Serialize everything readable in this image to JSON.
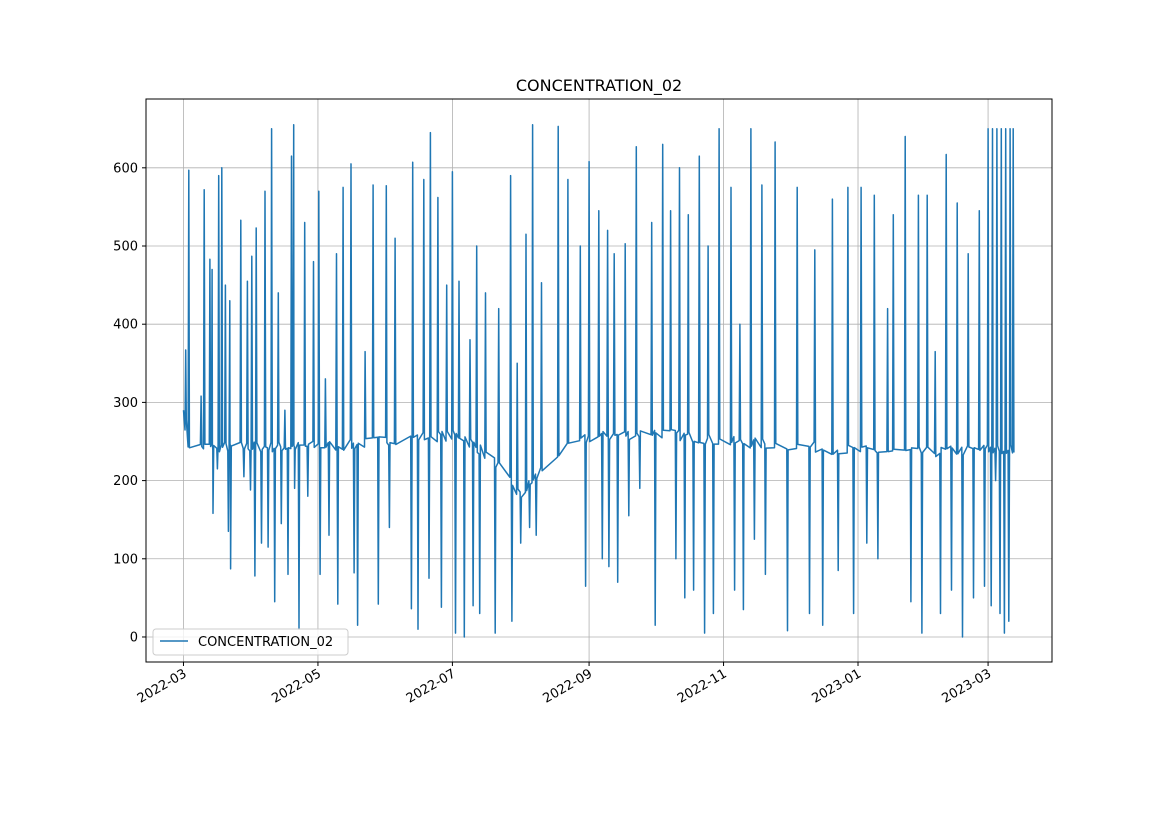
{
  "chart_data": {
    "type": "line",
    "title": "CONCENTRATION_02",
    "xlabel": "",
    "ylabel": "",
    "xlim": [
      "2022-02-12",
      "2023-03-30"
    ],
    "ylim": [
      -32,
      688
    ],
    "grid": true,
    "legend_placement": "lower-left",
    "x_ticks": [
      "2022-03",
      "2022-05",
      "2022-07",
      "2022-09",
      "2022-11",
      "2023-01",
      "2023-03"
    ],
    "y_ticks": [
      0,
      100,
      200,
      300,
      400,
      500,
      600
    ],
    "colors": {
      "series": "#1f77b4",
      "grid": "#b0b0b0"
    },
    "series": [
      {
        "name": "CONCENTRATION_02",
        "baseline": [
          [
            "2022-03-01",
            290
          ],
          [
            "2022-03-04",
            235
          ],
          [
            "2022-03-08",
            225
          ],
          [
            "2022-03-09",
            243
          ],
          [
            "2022-04-15",
            243
          ],
          [
            "2022-05-15",
            245
          ],
          [
            "2022-06-10",
            255
          ],
          [
            "2022-07-05",
            258
          ],
          [
            "2022-07-20",
            225
          ],
          [
            "2022-08-01",
            180
          ],
          [
            "2022-08-15",
            230
          ],
          [
            "2022-09-01",
            255
          ],
          [
            "2022-10-01",
            262
          ],
          [
            "2022-11-01",
            250
          ],
          [
            "2022-12-01",
            245
          ],
          [
            "2023-01-01",
            238
          ],
          [
            "2023-02-01",
            236
          ],
          [
            "2023-03-01",
            240
          ],
          [
            "2023-03-12",
            240
          ]
        ],
        "spikes": [
          [
            "2022-03-02",
            367
          ],
          [
            "2022-03-03",
            597
          ],
          [
            "2022-03-09",
            308
          ],
          [
            "2022-03-10",
            572
          ],
          [
            "2022-03-13",
            483
          ],
          [
            "2022-03-14",
            158
          ],
          [
            "2022-03-14",
            470
          ],
          [
            "2022-03-16",
            215
          ],
          [
            "2022-03-17",
            590
          ],
          [
            "2022-03-18",
            600
          ],
          [
            "2022-03-20",
            450
          ],
          [
            "2022-03-21",
            135
          ],
          [
            "2022-03-22",
            430
          ],
          [
            "2022-03-22",
            87
          ],
          [
            "2022-03-27",
            533
          ],
          [
            "2022-03-28",
            205
          ],
          [
            "2022-03-30",
            455
          ],
          [
            "2022-03-31",
            188
          ],
          [
            "2022-04-01",
            487
          ],
          [
            "2022-04-02",
            78
          ],
          [
            "2022-04-03",
            523
          ],
          [
            "2022-04-05",
            120
          ],
          [
            "2022-04-07",
            570
          ],
          [
            "2022-04-08",
            115
          ],
          [
            "2022-04-10",
            650
          ],
          [
            "2022-04-11",
            45
          ],
          [
            "2022-04-13",
            440
          ],
          [
            "2022-04-14",
            145
          ],
          [
            "2022-04-16",
            290
          ],
          [
            "2022-04-17",
            80
          ],
          [
            "2022-04-19",
            615
          ],
          [
            "2022-04-20",
            190
          ],
          [
            "2022-04-20",
            655
          ],
          [
            "2022-04-22",
            10
          ],
          [
            "2022-04-25",
            530
          ],
          [
            "2022-04-26",
            180
          ],
          [
            "2022-04-29",
            480
          ],
          [
            "2022-05-01",
            570
          ],
          [
            "2022-05-02",
            80
          ],
          [
            "2022-05-04",
            330
          ],
          [
            "2022-05-06",
            130
          ],
          [
            "2022-05-09",
            490
          ],
          [
            "2022-05-10",
            42
          ],
          [
            "2022-05-12",
            575
          ],
          [
            "2022-05-16",
            605
          ],
          [
            "2022-05-17",
            82
          ],
          [
            "2022-05-19",
            15
          ],
          [
            "2022-05-22",
            365
          ],
          [
            "2022-05-26",
            578
          ],
          [
            "2022-05-28",
            42
          ],
          [
            "2022-06-01",
            577
          ],
          [
            "2022-06-02",
            140
          ],
          [
            "2022-06-05",
            510
          ],
          [
            "2022-06-12",
            36
          ],
          [
            "2022-06-13",
            607
          ],
          [
            "2022-06-15",
            10
          ],
          [
            "2022-06-18",
            585
          ],
          [
            "2022-06-20",
            75
          ],
          [
            "2022-06-21",
            645
          ],
          [
            "2022-06-24",
            562
          ],
          [
            "2022-06-26",
            38
          ],
          [
            "2022-06-28",
            450
          ],
          [
            "2022-07-01",
            595
          ],
          [
            "2022-07-02",
            5
          ],
          [
            "2022-07-04",
            455
          ],
          [
            "2022-07-06",
            0
          ],
          [
            "2022-07-09",
            380
          ],
          [
            "2022-07-10",
            40
          ],
          [
            "2022-07-12",
            500
          ],
          [
            "2022-07-13",
            30
          ],
          [
            "2022-07-16",
            440
          ],
          [
            "2022-07-20",
            5
          ],
          [
            "2022-07-22",
            420
          ],
          [
            "2022-07-27",
            590
          ],
          [
            "2022-07-28",
            20
          ],
          [
            "2022-07-30",
            350
          ],
          [
            "2022-08-01",
            120
          ],
          [
            "2022-08-03",
            515
          ],
          [
            "2022-08-05",
            140
          ],
          [
            "2022-08-06",
            655
          ],
          [
            "2022-08-08",
            130
          ],
          [
            "2022-08-10",
            453
          ],
          [
            "2022-08-18",
            653
          ],
          [
            "2022-08-22",
            585
          ],
          [
            "2022-08-28",
            500
          ],
          [
            "2022-08-30",
            65
          ],
          [
            "2022-09-01",
            608
          ],
          [
            "2022-09-05",
            545
          ],
          [
            "2022-09-07",
            100
          ],
          [
            "2022-09-09",
            520
          ],
          [
            "2022-09-10",
            90
          ],
          [
            "2022-09-12",
            490
          ],
          [
            "2022-09-14",
            70
          ],
          [
            "2022-09-17",
            503
          ],
          [
            "2022-09-19",
            155
          ],
          [
            "2022-09-22",
            627
          ],
          [
            "2022-09-24",
            190
          ],
          [
            "2022-09-29",
            530
          ],
          [
            "2022-10-01",
            15
          ],
          [
            "2022-10-04",
            630
          ],
          [
            "2022-10-08",
            545
          ],
          [
            "2022-10-10",
            100
          ],
          [
            "2022-10-12",
            600
          ],
          [
            "2022-10-14",
            50
          ],
          [
            "2022-10-16",
            540
          ],
          [
            "2022-10-18",
            60
          ],
          [
            "2022-10-21",
            615
          ],
          [
            "2022-10-23",
            5
          ],
          [
            "2022-10-25",
            500
          ],
          [
            "2022-10-27",
            30
          ],
          [
            "2022-10-30",
            650
          ],
          [
            "2022-11-04",
            575
          ],
          [
            "2022-11-06",
            60
          ],
          [
            "2022-11-08",
            400
          ],
          [
            "2022-11-10",
            35
          ],
          [
            "2022-11-13",
            650
          ],
          [
            "2022-11-15",
            125
          ],
          [
            "2022-11-18",
            578
          ],
          [
            "2022-11-20",
            80
          ],
          [
            "2022-11-24",
            633
          ],
          [
            "2022-11-30",
            8
          ],
          [
            "2022-12-04",
            575
          ],
          [
            "2022-12-10",
            30
          ],
          [
            "2022-12-12",
            495
          ],
          [
            "2022-12-16",
            15
          ],
          [
            "2022-12-20",
            560
          ],
          [
            "2022-12-23",
            85
          ],
          [
            "2022-12-27",
            575
          ],
          [
            "2022-12-30",
            30
          ],
          [
            "2023-01-02",
            575
          ],
          [
            "2023-01-05",
            120
          ],
          [
            "2023-01-08",
            565
          ],
          [
            "2023-01-10",
            100
          ],
          [
            "2023-01-14",
            420
          ],
          [
            "2023-01-17",
            540
          ],
          [
            "2023-01-22",
            640
          ],
          [
            "2023-01-25",
            45
          ],
          [
            "2023-01-28",
            565
          ],
          [
            "2023-01-30",
            5
          ],
          [
            "2023-02-01",
            565
          ],
          [
            "2023-02-05",
            365
          ],
          [
            "2023-02-07",
            30
          ],
          [
            "2023-02-10",
            617
          ],
          [
            "2023-02-12",
            60
          ],
          [
            "2023-02-15",
            555
          ],
          [
            "2023-02-17",
            0
          ],
          [
            "2023-02-20",
            490
          ],
          [
            "2023-02-22",
            50
          ],
          [
            "2023-02-25",
            545
          ],
          [
            "2023-02-27",
            65
          ],
          [
            "2023-03-01",
            650
          ],
          [
            "2023-03-02",
            40
          ],
          [
            "2023-03-03",
            650
          ],
          [
            "2023-03-04",
            200
          ],
          [
            "2023-03-05",
            650
          ],
          [
            "2023-03-06",
            30
          ],
          [
            "2023-03-07",
            650
          ],
          [
            "2023-03-08",
            5
          ],
          [
            "2023-03-09",
            650
          ],
          [
            "2023-03-10",
            20
          ],
          [
            "2023-03-11",
            650
          ],
          [
            "2023-03-12",
            650
          ]
        ]
      }
    ]
  }
}
